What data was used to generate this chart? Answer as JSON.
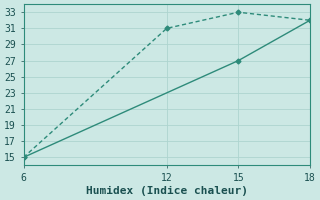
{
  "line1_x": [
    6,
    12,
    15,
    18
  ],
  "line1_y": [
    15,
    31,
    33,
    32
  ],
  "line2_x": [
    6,
    15,
    18
  ],
  "line2_y": [
    15,
    27,
    32
  ],
  "line_color": "#2e8b7a",
  "bg_color": "#cce8e4",
  "grid_color": "#aed4cf",
  "axis_color": "#1a5050",
  "spine_color": "#2e8b7a",
  "xlabel": "Humidex (Indice chaleur)",
  "xlim": [
    6,
    18
  ],
  "ylim": [
    14,
    34
  ],
  "xticks": [
    6,
    12,
    15,
    18
  ],
  "yticks": [
    15,
    17,
    19,
    21,
    23,
    25,
    27,
    29,
    31,
    33
  ],
  "marker": "D",
  "marker_size": 2.5,
  "linewidth": 1.0,
  "xlabel_fontsize": 8,
  "tick_fontsize": 7
}
